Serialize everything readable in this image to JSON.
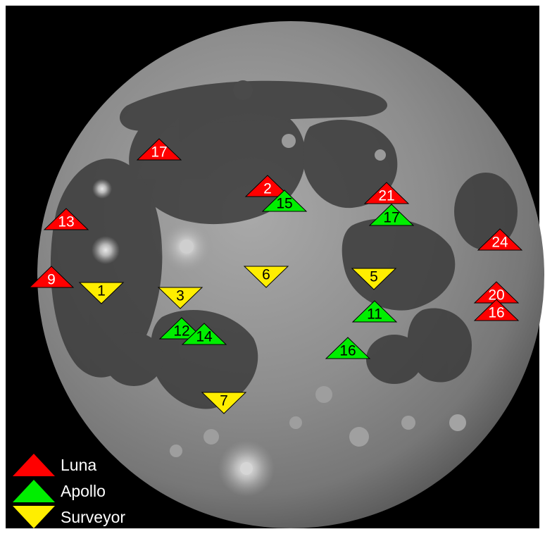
{
  "legend": [
    {
      "type": "luna",
      "label": "Luna"
    },
    {
      "type": "apollo",
      "label": "Apollo"
    },
    {
      "type": "surveyor",
      "label": "Surveyor"
    }
  ],
  "colors": {
    "luna": "#ff0000",
    "apollo": "#00ee00",
    "surveyor": "#ffee00",
    "luna_text": "#ffffff",
    "apollo_text": "#000000",
    "surveyor_text": "#000000",
    "background": "#000000",
    "moon": "#8c8c8c"
  },
  "landing_sites": [
    {
      "type": "luna",
      "mission": "17"
    },
    {
      "type": "luna",
      "mission": "2"
    },
    {
      "type": "luna",
      "mission": "21"
    },
    {
      "type": "luna",
      "mission": "13"
    },
    {
      "type": "luna",
      "mission": "24"
    },
    {
      "type": "luna",
      "mission": "9"
    },
    {
      "type": "luna",
      "mission": "20"
    },
    {
      "type": "luna",
      "mission": "16"
    },
    {
      "type": "apollo",
      "mission": "15"
    },
    {
      "type": "apollo",
      "mission": "17"
    },
    {
      "type": "apollo",
      "mission": "11"
    },
    {
      "type": "apollo",
      "mission": "12"
    },
    {
      "type": "apollo",
      "mission": "14"
    },
    {
      "type": "apollo",
      "mission": "16"
    },
    {
      "type": "surveyor",
      "mission": "1"
    },
    {
      "type": "surveyor",
      "mission": "3"
    },
    {
      "type": "surveyor",
      "mission": "6"
    },
    {
      "type": "surveyor",
      "mission": "5"
    },
    {
      "type": "surveyor",
      "mission": "7"
    }
  ]
}
